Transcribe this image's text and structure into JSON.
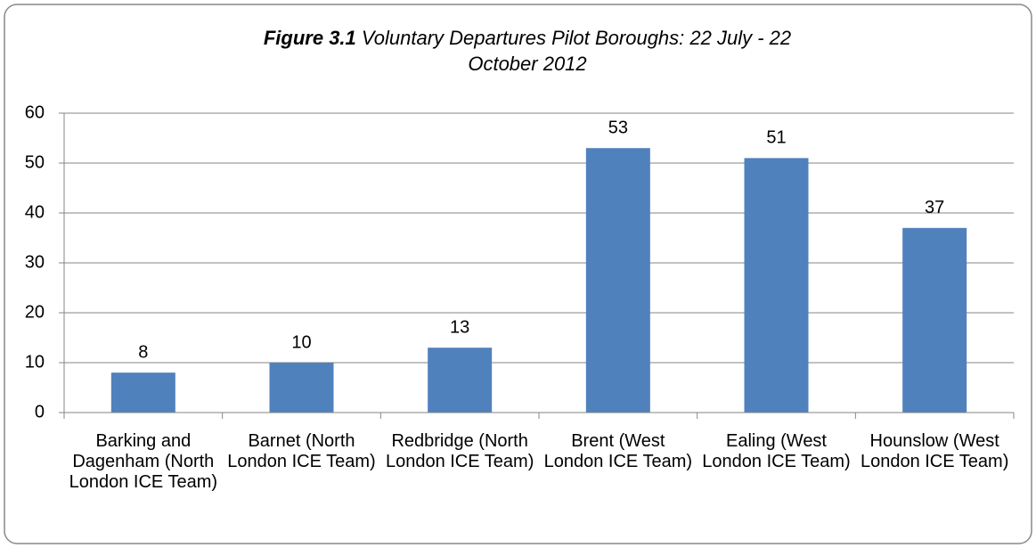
{
  "chart_data": {
    "type": "bar",
    "figure_label": "Figure 3.1",
    "title": "Voluntary Departures Pilot Boroughs: 22 July - 22 October 2012",
    "categories": [
      "Barking and Dagenham (North London ICE Team)",
      "Barnet (North London ICE Team)",
      "Redbridge (North London ICE Team)",
      "Brent (West London ICE Team)",
      "Ealing (West London ICE Team)",
      "Hounslow (West London ICE Team)"
    ],
    "values": [
      8,
      10,
      13,
      53,
      51,
      37
    ],
    "color": "#4f81bd",
    "ylim": [
      0,
      60
    ],
    "yticks": [
      0,
      10,
      20,
      30,
      40,
      50,
      60
    ],
    "grid": true
  }
}
